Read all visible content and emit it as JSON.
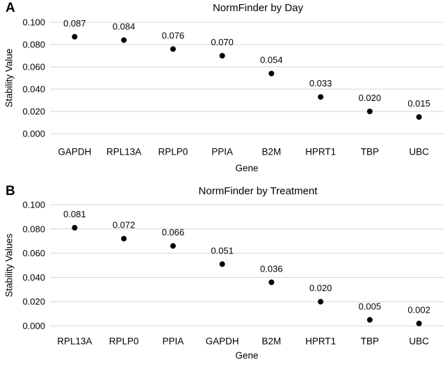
{
  "figure": {
    "panels": [
      {
        "letter": "A"
      },
      {
        "letter": "B"
      }
    ]
  },
  "chart_data": [
    {
      "type": "scatter",
      "title": "NormFinder by Day",
      "xlabel": "Gene",
      "ylabel": "Stability Value",
      "categories": [
        "GAPDH",
        "RPL13A",
        "RPLP0",
        "PPIA",
        "B2M",
        "HPRT1",
        "TBP",
        "UBC"
      ],
      "values": [
        0.087,
        0.084,
        0.076,
        0.07,
        0.054,
        0.033,
        0.02,
        0.015
      ],
      "data_labels": [
        "0.087",
        "0.084",
        "0.076",
        "0.070",
        "0.054",
        "0.033",
        "0.020",
        "0.015"
      ],
      "ylim": [
        0,
        0.1
      ],
      "yticks": [
        "0.000",
        "0.020",
        "0.040",
        "0.060",
        "0.080",
        "0.100"
      ],
      "grid": true,
      "legend": "none",
      "marker_color": "#000000",
      "gridline_color": "#d4d4d4"
    },
    {
      "type": "scatter",
      "title": "NormFinder by Treatment",
      "xlabel": "Gene",
      "ylabel": "Stability Values",
      "categories": [
        "RPL13A",
        "RPLP0",
        "PPIA",
        "GAPDH",
        "B2M",
        "HPRT1",
        "TBP",
        "UBC"
      ],
      "values": [
        0.081,
        0.072,
        0.066,
        0.051,
        0.036,
        0.02,
        0.005,
        0.002
      ],
      "data_labels": [
        "0.081",
        "0.072",
        "0.066",
        "0.051",
        "0.036",
        "0.020",
        "0.005",
        "0.002"
      ],
      "ylim": [
        0,
        0.1
      ],
      "yticks": [
        "0.000",
        "0.020",
        "0.040",
        "0.060",
        "0.080",
        "0.100"
      ],
      "grid": true,
      "legend": "none",
      "marker_color": "#000000",
      "gridline_color": "#d4d4d4"
    }
  ]
}
